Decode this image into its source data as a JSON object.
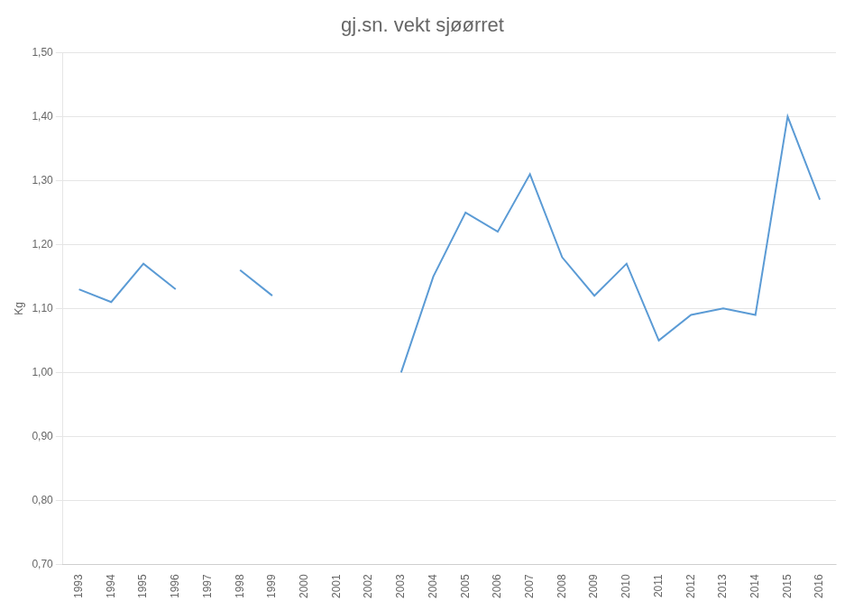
{
  "chart_data": {
    "type": "line",
    "title": "gj.sn. vekt sjøørret",
    "y_label": "Kg",
    "x": [
      1993,
      1994,
      1995,
      1996,
      1997,
      1998,
      1999,
      2000,
      2001,
      2002,
      2003,
      2004,
      2005,
      2006,
      2007,
      2008,
      2009,
      2010,
      2011,
      2012,
      2013,
      2014,
      2015,
      2016
    ],
    "values": [
      1.13,
      1.11,
      1.17,
      1.13,
      null,
      1.16,
      1.12,
      null,
      null,
      null,
      1.0,
      1.15,
      1.25,
      1.22,
      1.31,
      1.18,
      1.12,
      1.17,
      1.05,
      1.09,
      1.1,
      1.09,
      1.4,
      1.27
    ],
    "color": "#5B9BD5",
    "xlim": [
      1992.5,
      2016.5
    ],
    "xticks": [
      1993,
      1994,
      1995,
      1996,
      1997,
      1998,
      1999,
      2000,
      2001,
      2002,
      2003,
      2004,
      2005,
      2006,
      2007,
      2008,
      2009,
      2010,
      2011,
      2012,
      2013,
      2014,
      2015,
      2016
    ],
    "ylim": [
      0.7,
      1.5
    ],
    "yticks": [
      {
        "value": 0.7,
        "label": "0,70"
      },
      {
        "value": 0.8,
        "label": "0,80"
      },
      {
        "value": 0.9,
        "label": "0,90"
      },
      {
        "value": 1.0,
        "label": "1,00"
      },
      {
        "value": 1.1,
        "label": "1,10"
      },
      {
        "value": 1.2,
        "label": "1,20"
      },
      {
        "value": 1.3,
        "label": "1,30"
      },
      {
        "value": 1.4,
        "label": "1,40"
      },
      {
        "value": 1.5,
        "label": "1,50"
      }
    ],
    "grid": true
  }
}
